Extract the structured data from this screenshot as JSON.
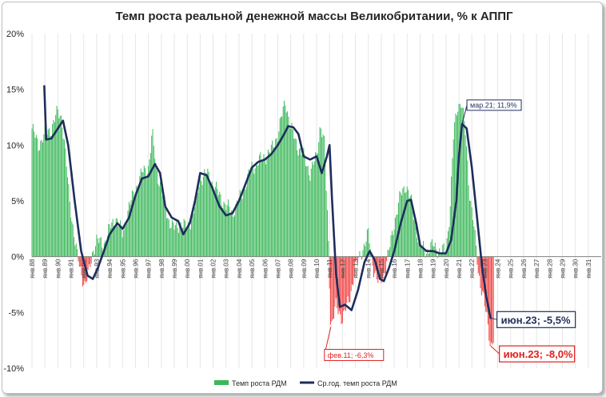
{
  "chart_data": {
    "type": "bar+line",
    "title": "Темп роста реальной денежной массы Великобритании, % к АППГ",
    "ylim": [
      -10,
      20
    ],
    "yticks": [
      {
        "v": 20,
        "label": "20%"
      },
      {
        "v": 15,
        "label": "15%"
      },
      {
        "v": 10,
        "label": "10%"
      },
      {
        "v": 5,
        "label": "5%"
      },
      {
        "v": 0,
        "label": "0%"
      },
      {
        "v": -5,
        "label": "-5%"
      },
      {
        "v": -10,
        "label": "-10%"
      }
    ],
    "xlim": [
      1988.0,
      2032.0
    ],
    "categories": [
      "янв.88",
      "янв.89",
      "янв.90",
      "янв.91",
      "янв.92",
      "янв.93",
      "янв.94",
      "янв.95",
      "янв.96",
      "янв.97",
      "янв.98",
      "янв.99",
      "янв.00",
      "янв.01",
      "янв.02",
      "янв.03",
      "янв.04",
      "янв.05",
      "янв.06",
      "янв.07",
      "янв.08",
      "янв.09",
      "янв.10",
      "янв.11",
      "янв.12",
      "янв.13",
      "янв.14",
      "янв.15",
      "янв.16",
      "янв.17",
      "янв.18",
      "янв.19",
      "янв.20",
      "янв.21",
      "янв.22",
      "янв.23",
      "янв.24",
      "янв.25",
      "янв.26",
      "янв.27",
      "янв.28",
      "янв.29",
      "янв.30",
      "янв.31"
    ],
    "bar_series": {
      "name": "Темп роста РДМ",
      "color_positive": "#3cb85a",
      "color_negative": "#f04040",
      "keypoints": [
        [
          1988.0,
          11.5
        ],
        [
          1988.5,
          10.0
        ],
        [
          1989.0,
          11.0
        ],
        [
          1989.5,
          11.5
        ],
        [
          1990.0,
          13.0
        ],
        [
          1990.3,
          12.5
        ],
        [
          1990.6,
          9.0
        ],
        [
          1990.9,
          5.0
        ],
        [
          1991.2,
          2.5
        ],
        [
          1991.5,
          0.0
        ],
        [
          1991.8,
          -1.5
        ],
        [
          1992.1,
          -2.5
        ],
        [
          1992.4,
          -1.5
        ],
        [
          1992.7,
          0.5
        ],
        [
          1993.0,
          1.5
        ],
        [
          1993.5,
          1.0
        ],
        [
          1994.0,
          2.5
        ],
        [
          1994.5,
          3.5
        ],
        [
          1995.0,
          2.0
        ],
        [
          1995.5,
          4.5
        ],
        [
          1996.0,
          6.0
        ],
        [
          1996.5,
          7.5
        ],
        [
          1997.0,
          8.0
        ],
        [
          1997.3,
          11.0
        ],
        [
          1997.6,
          8.0
        ],
        [
          1998.0,
          6.0
        ],
        [
          1998.5,
          3.5
        ],
        [
          1999.0,
          2.5
        ],
        [
          1999.5,
          3.0
        ],
        [
          2000.0,
          2.5
        ],
        [
          2000.5,
          4.0
        ],
        [
          2001.0,
          7.0
        ],
        [
          2001.5,
          7.5
        ],
        [
          2002.0,
          6.5
        ],
        [
          2002.5,
          5.5
        ],
        [
          2003.0,
          4.5
        ],
        [
          2003.5,
          4.0
        ],
        [
          2004.0,
          5.0
        ],
        [
          2004.5,
          6.5
        ],
        [
          2005.0,
          8.0
        ],
        [
          2005.5,
          8.5
        ],
        [
          2006.0,
          9.0
        ],
        [
          2006.5,
          9.5
        ],
        [
          2007.0,
          11.0
        ],
        [
          2007.3,
          12.5
        ],
        [
          2007.6,
          14.0
        ],
        [
          2008.0,
          11.5
        ],
        [
          2008.5,
          10.0
        ],
        [
          2009.0,
          9.0
        ],
        [
          2009.5,
          7.5
        ],
        [
          2010.0,
          9.0
        ],
        [
          2010.3,
          12.0
        ],
        [
          2010.6,
          10.0
        ],
        [
          2010.9,
          2.0
        ],
        [
          2011.1,
          -6.3
        ],
        [
          2011.5,
          -4.5
        ],
        [
          2012.0,
          -5.5
        ],
        [
          2012.5,
          -4.0
        ],
        [
          2013.0,
          -1.0
        ],
        [
          2013.5,
          0.5
        ],
        [
          2014.0,
          2.0
        ],
        [
          2014.4,
          -1.0
        ],
        [
          2014.8,
          -2.5
        ],
        [
          2015.2,
          -1.5
        ],
        [
          2015.6,
          0.5
        ],
        [
          2016.0,
          3.0
        ],
        [
          2016.5,
          5.5
        ],
        [
          2016.9,
          6.5
        ],
        [
          2017.3,
          5.0
        ],
        [
          2017.7,
          2.5
        ],
        [
          2018.0,
          1.0
        ],
        [
          2018.5,
          0.5
        ],
        [
          2019.0,
          1.0
        ],
        [
          2019.5,
          0.5
        ],
        [
          2020.0,
          0.5
        ],
        [
          2020.3,
          4.0
        ],
        [
          2020.6,
          11.0
        ],
        [
          2020.9,
          13.5
        ],
        [
          2021.2,
          14.0
        ],
        [
          2021.5,
          11.0
        ],
        [
          2021.8,
          6.0
        ],
        [
          2022.1,
          3.5
        ],
        [
          2022.5,
          -1.5
        ],
        [
          2022.9,
          -3.5
        ],
        [
          2023.2,
          -6.0
        ],
        [
          2023.45,
          -8.0
        ],
        [
          2023.7,
          -7.0
        ]
      ]
    },
    "line_series": {
      "name": "Ср.год. темп роста РДМ",
      "color": "#1f2d5c",
      "keypoints": [
        [
          1988.95,
          15.3
        ],
        [
          1989.1,
          10.5
        ],
        [
          1989.5,
          10.6
        ],
        [
          1990.0,
          11.5
        ],
        [
          1990.4,
          12.2
        ],
        [
          1990.8,
          10.0
        ],
        [
          1991.3,
          5.0
        ],
        [
          1991.8,
          0.5
        ],
        [
          1992.3,
          -1.7
        ],
        [
          1992.7,
          -2.0
        ],
        [
          1993.1,
          -1.0
        ],
        [
          1993.5,
          0.3
        ],
        [
          1994.0,
          2.0
        ],
        [
          1994.6,
          3.0
        ],
        [
          1995.0,
          2.5
        ],
        [
          1995.5,
          3.5
        ],
        [
          1996.0,
          5.5
        ],
        [
          1996.5,
          7.0
        ],
        [
          1997.0,
          7.2
        ],
        [
          1997.5,
          8.3
        ],
        [
          1997.9,
          7.5
        ],
        [
          1998.3,
          4.5
        ],
        [
          1998.8,
          3.5
        ],
        [
          1999.3,
          3.2
        ],
        [
          1999.7,
          2.0
        ],
        [
          2000.2,
          3.0
        ],
        [
          2000.6,
          5.0
        ],
        [
          2001.0,
          7.5
        ],
        [
          2001.5,
          7.3
        ],
        [
          2002.0,
          6.0
        ],
        [
          2002.5,
          4.5
        ],
        [
          2003.0,
          3.7
        ],
        [
          2003.5,
          3.9
        ],
        [
          2004.0,
          5.0
        ],
        [
          2004.5,
          6.5
        ],
        [
          2005.0,
          8.0
        ],
        [
          2005.5,
          8.5
        ],
        [
          2006.0,
          8.7
        ],
        [
          2006.5,
          9.2
        ],
        [
          2007.0,
          10.0
        ],
        [
          2007.5,
          11.0
        ],
        [
          2007.8,
          11.7
        ],
        [
          2008.2,
          11.6
        ],
        [
          2008.6,
          11.0
        ],
        [
          2009.0,
          9.0
        ],
        [
          2009.5,
          8.7
        ],
        [
          2010.0,
          9.0
        ],
        [
          2010.4,
          7.5
        ],
        [
          2010.8,
          9.0
        ],
        [
          2011.0,
          10.0
        ],
        [
          2011.2,
          5.0
        ],
        [
          2011.5,
          -1.5
        ],
        [
          2011.8,
          -4.5
        ],
        [
          2012.2,
          -4.3
        ],
        [
          2012.7,
          -4.8
        ],
        [
          2013.2,
          -3.0
        ],
        [
          2013.7,
          -0.5
        ],
        [
          2014.1,
          0.5
        ],
        [
          2014.5,
          -0.3
        ],
        [
          2014.9,
          -2.0
        ],
        [
          2015.2,
          -2.2
        ],
        [
          2015.6,
          -1.0
        ],
        [
          2016.0,
          0.5
        ],
        [
          2016.5,
          3.0
        ],
        [
          2017.0,
          5.0
        ],
        [
          2017.3,
          5.1
        ],
        [
          2017.7,
          3.0
        ],
        [
          2018.0,
          1.0
        ],
        [
          2018.5,
          0.5
        ],
        [
          2019.0,
          0.5
        ],
        [
          2019.5,
          0.3
        ],
        [
          2020.0,
          0.3
        ],
        [
          2020.4,
          1.5
        ],
        [
          2020.8,
          5.0
        ],
        [
          2021.0,
          9.0
        ],
        [
          2021.25,
          11.9
        ],
        [
          2021.6,
          11.5
        ],
        [
          2022.0,
          8.0
        ],
        [
          2022.4,
          3.5
        ],
        [
          2022.8,
          -1.0
        ],
        [
          2023.1,
          -3.5
        ],
        [
          2023.45,
          -5.5
        ]
      ]
    },
    "legend": {
      "position": "bottom-center",
      "bar_label": "Темп роста РДМ",
      "line_label": "Ср.год. темп роста РДМ"
    },
    "annotations": [
      {
        "id": "mar21",
        "text": "мар.21; 11,9%",
        "series": "line",
        "x": 2021.25,
        "y": 11.9
      },
      {
        "id": "jun23-line",
        "text": "июн.23; -5,5%",
        "series": "line",
        "x": 2023.45,
        "y": -5.5
      },
      {
        "id": "feb11",
        "text": "фев.11; -6,3%",
        "series": "bar",
        "x": 2011.1,
        "y": -6.3
      },
      {
        "id": "jun23-bar",
        "text": "июн.23; -8,0%",
        "series": "bar",
        "x": 2023.45,
        "y": -8.0
      }
    ],
    "grid": "vertical"
  }
}
